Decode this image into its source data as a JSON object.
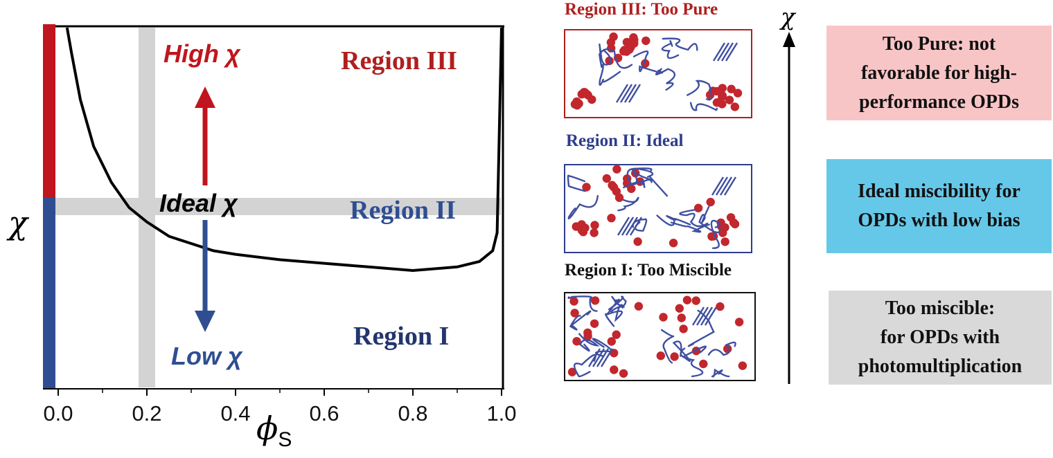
{
  "plot": {
    "region_iii": "Region III",
    "region_ii": "Region II",
    "region_i": "Region I",
    "high_label": "High χ",
    "low_label": "Low χ",
    "ideal_label": "Ideal χ",
    "y_axis_label": "χ",
    "x_axis_symbol": "ϕ",
    "x_axis_subscript": "S",
    "x_ticks": [
      "0.0",
      "0.2",
      "0.4",
      "0.6",
      "0.8",
      "1.0"
    ],
    "colors": {
      "high": "#c0151e",
      "low": "#2f4e92",
      "highlight": "#d3d3d3"
    }
  },
  "chart_data": {
    "type": "line",
    "xlabel": "ϕS",
    "ylabel": "χ",
    "xlim": [
      0.0,
      1.0
    ],
    "series": [
      {
        "x": [
          0.02,
          0.03,
          0.05,
          0.08,
          0.12,
          0.16,
          0.2,
          0.25,
          0.3,
          0.35,
          0.4,
          0.5,
          0.6,
          0.7,
          0.8,
          0.9,
          0.95,
          0.98,
          0.99,
          1.0
        ],
        "y": [
          1.0,
          0.93,
          0.8,
          0.67,
          0.57,
          0.5,
          0.46,
          0.42,
          0.4,
          0.38,
          0.37,
          0.355,
          0.345,
          0.335,
          0.325,
          0.335,
          0.35,
          0.38,
          0.43,
          1.0
        ]
      }
    ],
    "ideal_band": {
      "x": 0.2,
      "y": 0.52
    },
    "grid": false
  },
  "morphology": {
    "region_iii_caption": "Region III: Too Pure",
    "region_ii_caption": "Region II: Ideal",
    "region_i_caption": "Region I: Too Miscible",
    "axis_label": "χ",
    "colors": {
      "iii": "#b01f1f",
      "ii": "#2d3d8c",
      "i": "#111111",
      "particle": "#c1272d",
      "chain": "#3f4fa0"
    }
  },
  "descriptions": {
    "too_pure": [
      "Too Pure: not",
      "favorable for high-",
      "performance OPDs"
    ],
    "ideal": [
      "Ideal miscibility for",
      "OPDs with low bias"
    ],
    "too_miscible": [
      "Too miscible:",
      "for OPDs with",
      "photomultiplication"
    ],
    "colors": {
      "too_pure": "#f8c5c6",
      "ideal": "#66c8e8",
      "too_miscible": "#d9d9d9"
    }
  }
}
